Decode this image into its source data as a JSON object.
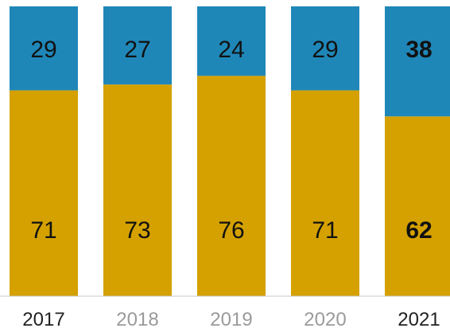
{
  "chart_data": {
    "type": "bar",
    "stacked": true,
    "percent": true,
    "categories": [
      "2017",
      "2018",
      "2019",
      "2020",
      "2021"
    ],
    "series": [
      {
        "values": [
          71,
          73,
          76,
          71,
          62
        ],
        "color": "#d4a100"
      },
      {
        "values": [
          29,
          27,
          24,
          29,
          38
        ],
        "color": "#1f87b8"
      }
    ],
    "ylim": [
      0,
      100
    ],
    "emphasized_categories": [
      "2017",
      "2021"
    ],
    "bold_values_category": "2021",
    "grid": false,
    "legend": "none"
  }
}
